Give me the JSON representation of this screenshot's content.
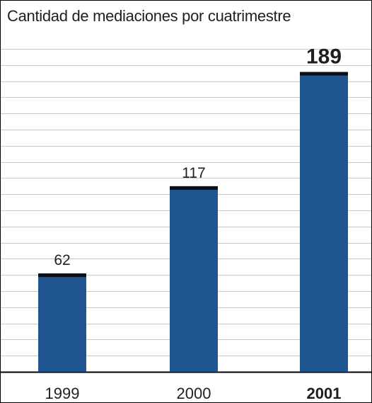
{
  "chart_data": {
    "type": "bar",
    "title": "Cantidad de mediaciones por cuatrimestre",
    "xlabel": "",
    "ylabel": "",
    "categories": [
      "1999",
      "2000",
      "2001"
    ],
    "values": [
      62,
      117,
      189
    ],
    "data_labels": [
      "62",
      "117",
      "189"
    ],
    "highlight_category": "2001",
    "ylim": [
      0,
      200
    ],
    "grid": true,
    "legend": "none",
    "colors": {
      "bar": "#1f5590",
      "bar_cap": "#0a0f1c",
      "grid": "#c8c8c8",
      "axis": "#000000",
      "text": "#1f1f1f"
    }
  }
}
